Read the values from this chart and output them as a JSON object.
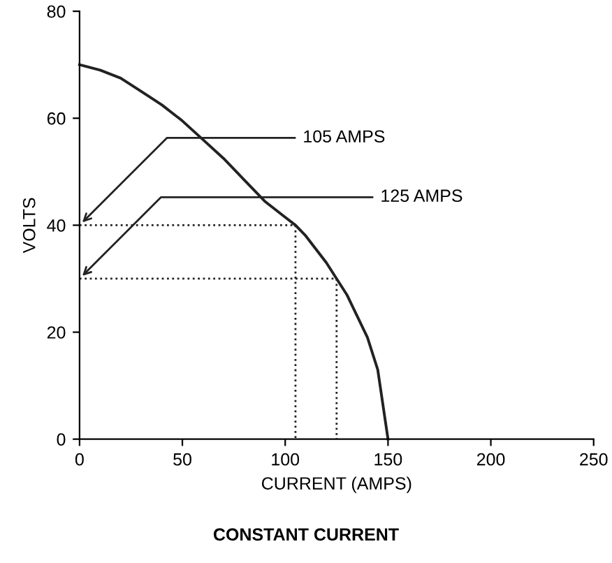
{
  "chart_data": {
    "type": "line",
    "title": "CONSTANT CURRENT",
    "xlabel": "CURRENT (AMPS)",
    "ylabel": "VOLTS",
    "xlim": [
      0,
      250
    ],
    "ylim": [
      0,
      80
    ],
    "xticks": [
      0,
      50,
      100,
      150,
      200,
      250
    ],
    "yticks": [
      0,
      20,
      40,
      60,
      80
    ],
    "grid": false,
    "legend": false,
    "marker": "none",
    "series": [
      {
        "color": "#222222",
        "line_style": "solid",
        "x": [
          0,
          10,
          20,
          30,
          40,
          50,
          60,
          70,
          80,
          90,
          100,
          105,
          110,
          120,
          125,
          130,
          140,
          145,
          150
        ],
        "values": [
          70,
          69,
          67.5,
          65,
          62.5,
          59.5,
          56,
          52.5,
          48.5,
          44.5,
          41.5,
          40,
          38,
          33,
          30,
          27,
          19,
          13,
          0
        ]
      },
      {
        "color": "#222222",
        "line_style": "dotted",
        "x": [
          0,
          105,
          105
        ],
        "values": [
          40,
          40,
          0
        ]
      },
      {
        "color": "#222222",
        "line_style": "dotted",
        "x": [
          0,
          125,
          125
        ],
        "values": [
          30,
          30,
          0
        ]
      }
    ],
    "annotations": [
      {
        "text": "105 AMPS",
        "x": 0,
        "y": 40
      },
      {
        "text": "125 AMPS",
        "x": 0,
        "y": 30
      }
    ]
  }
}
